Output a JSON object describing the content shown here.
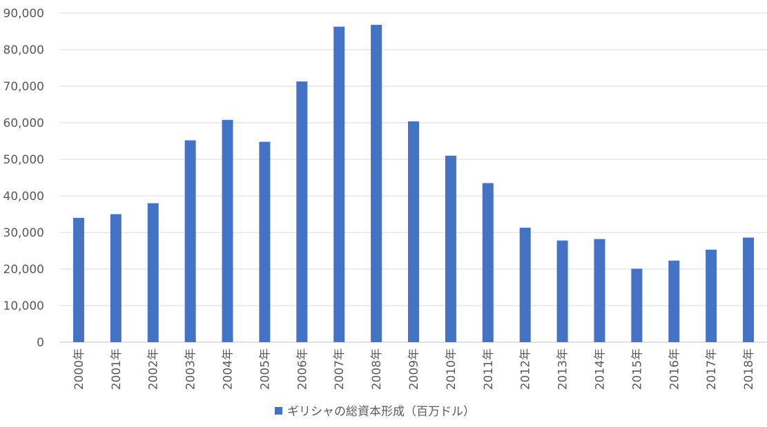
{
  "chart_data": {
    "type": "bar",
    "categories": [
      "2000年",
      "2001年",
      "2002年",
      "2003年",
      "2004年",
      "2005年",
      "2006年",
      "2007年",
      "2008年",
      "2009年",
      "2010年",
      "2011年",
      "2012年",
      "2013年",
      "2014年",
      "2015年",
      "2016年",
      "2017年",
      "2018年"
    ],
    "series": [
      {
        "name": "ギリシャの総資本形成（百万ドル）",
        "color": "#4472C4",
        "values": [
          34000,
          35000,
          38000,
          55200,
          60800,
          54800,
          71300,
          86300,
          86800,
          60400,
          51000,
          43500,
          31300,
          27800,
          28200,
          20100,
          22300,
          25300,
          28600
        ]
      }
    ],
    "y_ticks": [
      "0",
      "10,000",
      "20,000",
      "30,000",
      "40,000",
      "50,000",
      "60,000",
      "70,000",
      "80,000",
      "90,000"
    ],
    "ylim": [
      0,
      90000
    ],
    "grid": true,
    "legend_position": "bottom",
    "title": "",
    "xlabel": "",
    "ylabel": ""
  }
}
